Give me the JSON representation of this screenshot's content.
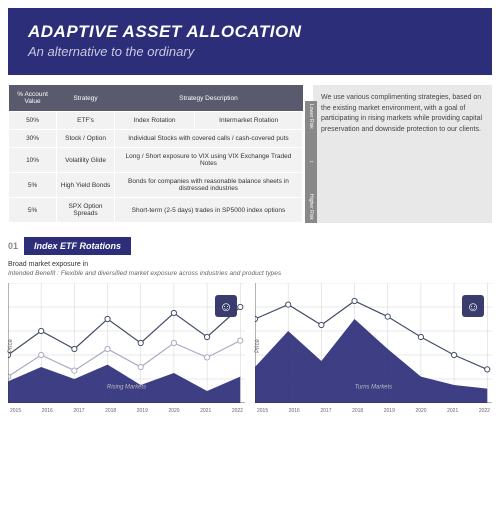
{
  "header": {
    "title": "ADAPTIVE ASSET ALLOCATION",
    "subtitle": "An alternative to the ordinary"
  },
  "table": {
    "columns": [
      "% Account Value",
      "Strategy",
      "Strategy Description"
    ],
    "rows": [
      {
        "pct": "50%",
        "strat": "ETF's",
        "desc1": "Index Rotation",
        "desc2": "Intermarket Rotation"
      },
      {
        "pct": "30%",
        "strat": "Stock / Option",
        "desc1": "Individual Stocks with covered calls / cash-covered puts",
        "desc2": ""
      },
      {
        "pct": "10%",
        "strat": "Volatility Glide",
        "desc1": "Long / Short exposure to VIX using VIX Exchange Traded Notes",
        "desc2": ""
      },
      {
        "pct": "5%",
        "strat": "High Yield Bonds",
        "desc1": "Bonds for companies with reasonable balance sheets in distressed industries",
        "desc2": ""
      },
      {
        "pct": "5%",
        "strat": "SPX Option Spreads",
        "desc1": "Short-term (2-5 days) trades in SP5000 index options",
        "desc2": ""
      }
    ]
  },
  "risk": {
    "low": "Lower Risk",
    "high": "Higher Risk"
  },
  "sidebar": {
    "text": "We use various complimenting strategies, based on the existing market environment, with a goal of participating in rising markets while providing capital preservation and downside protection to our clients."
  },
  "section": {
    "num": "01",
    "title": "Index ETF Rotations",
    "sub1": "Broad market exposure in",
    "sub2": "Intended Benefit : Flexible and diversified market exposure across industries and product types"
  },
  "chart_style": {
    "bg": "#ffffff",
    "grid_color": "#d0d0d0",
    "line_color": "#444d66",
    "line_alt": "#a8abc0",
    "area_color": "#2c2e7a",
    "marker_fill": "#ffffff",
    "marker_stroke": "#444d66",
    "smile_bg": "#3a3c6e",
    "ylabel": "Price",
    "xlabels": [
      "2015",
      "2016",
      "2017",
      "2018",
      "2019",
      "2020",
      "2021",
      "2022"
    ]
  },
  "chart1": {
    "type": "line+area",
    "area_points": [
      [
        0,
        82
      ],
      [
        28,
        70
      ],
      [
        56,
        80
      ],
      [
        84,
        68
      ],
      [
        112,
        85
      ],
      [
        140,
        75
      ],
      [
        168,
        90
      ],
      [
        196,
        78
      ]
    ],
    "line1": [
      [
        0,
        60
      ],
      [
        28,
        40
      ],
      [
        56,
        55
      ],
      [
        84,
        30
      ],
      [
        112,
        50
      ],
      [
        140,
        25
      ],
      [
        168,
        45
      ],
      [
        196,
        20
      ]
    ],
    "line2": [
      [
        0,
        78
      ],
      [
        28,
        60
      ],
      [
        56,
        73
      ],
      [
        84,
        55
      ],
      [
        112,
        70
      ],
      [
        140,
        50
      ],
      [
        168,
        62
      ],
      [
        196,
        48
      ]
    ],
    "watermark": "Rising Markets"
  },
  "chart2": {
    "type": "line+area",
    "area_points": [
      [
        0,
        70
      ],
      [
        28,
        40
      ],
      [
        56,
        65
      ],
      [
        84,
        30
      ],
      [
        112,
        55
      ],
      [
        140,
        78
      ],
      [
        168,
        85
      ],
      [
        196,
        88
      ]
    ],
    "line1": [
      [
        0,
        30
      ],
      [
        28,
        18
      ],
      [
        56,
        35
      ],
      [
        84,
        15
      ],
      [
        112,
        28
      ],
      [
        140,
        45
      ],
      [
        168,
        60
      ],
      [
        196,
        72
      ]
    ],
    "watermark": "Turns Markets"
  }
}
